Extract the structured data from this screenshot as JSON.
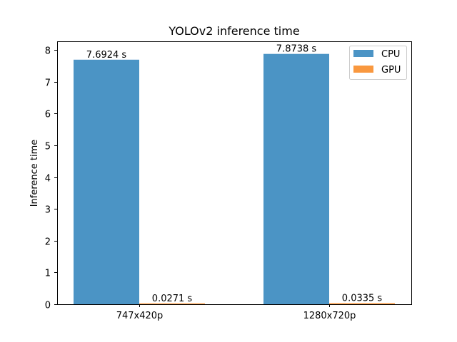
{
  "chart_data": {
    "type": "bar",
    "title": "YOLOv2 inference time",
    "xlabel": "",
    "ylabel": "Inference time",
    "categories": [
      "747x420p",
      "1280x720p"
    ],
    "series": [
      {
        "name": "CPU",
        "values": [
          7.6924,
          7.8738
        ],
        "labels": [
          "7.6924 s",
          "7.8738 s"
        ],
        "color": "#4b94c5"
      },
      {
        "name": "GPU",
        "values": [
          0.0271,
          0.0335
        ],
        "labels": [
          "0.0271 s",
          "0.0335 s"
        ],
        "color": "#f9983f"
      }
    ],
    "ylim": [
      0,
      8.27
    ],
    "yticks": [
      0,
      1,
      2,
      3,
      4,
      5,
      6,
      7,
      8
    ],
    "grid": false,
    "legend_position": "top-right"
  }
}
